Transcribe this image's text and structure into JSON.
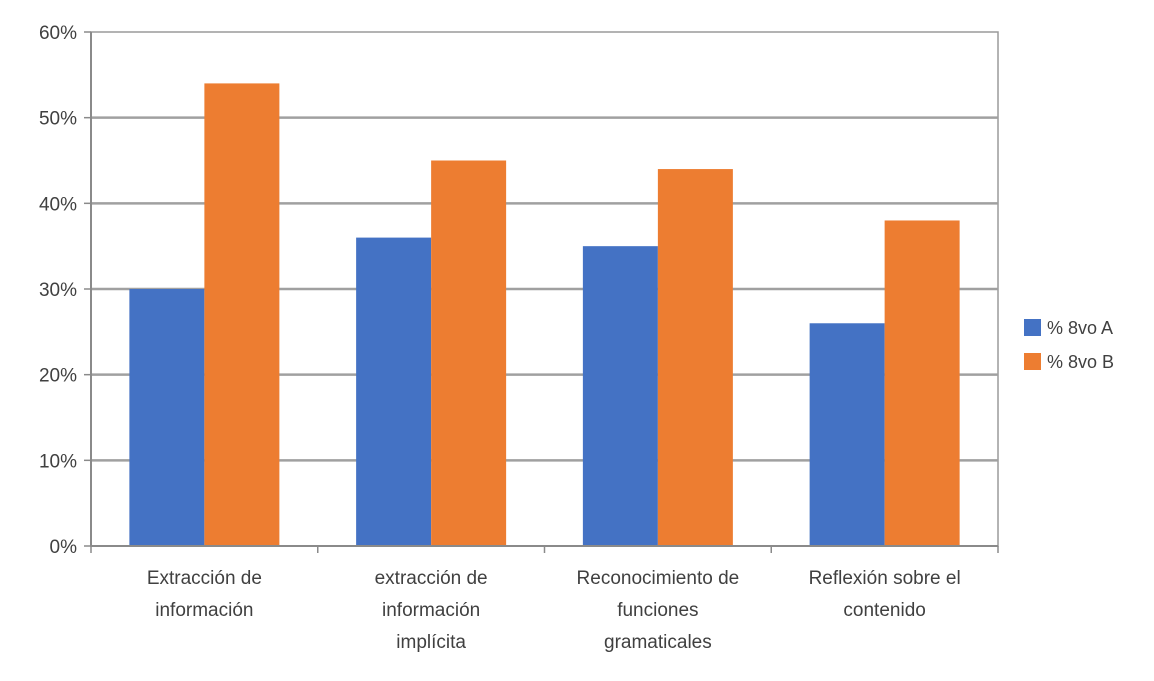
{
  "chart_data": {
    "type": "bar",
    "title": "",
    "xlabel": "",
    "ylabel": "",
    "categories": [
      [
        "Extracción de",
        "información"
      ],
      [
        "extracción de",
        "información",
        "implícita"
      ],
      [
        "Reconocimiento de",
        "funciones",
        "gramaticales"
      ],
      [
        "Reflexión sobre el",
        "contenido"
      ]
    ],
    "series": [
      {
        "name": "% 8vo A",
        "color": "#4472C4",
        "values": [
          30,
          36,
          35,
          26
        ]
      },
      {
        "name": "% 8vo B",
        "color": "#ED7D31",
        "values": [
          54,
          45,
          44,
          38
        ]
      }
    ],
    "ylim": [
      0,
      60
    ],
    "yticks": [
      "0%",
      "10%",
      "20%",
      "30%",
      "40%",
      "50%",
      "60%"
    ],
    "grid": true,
    "legend_position": "right"
  }
}
